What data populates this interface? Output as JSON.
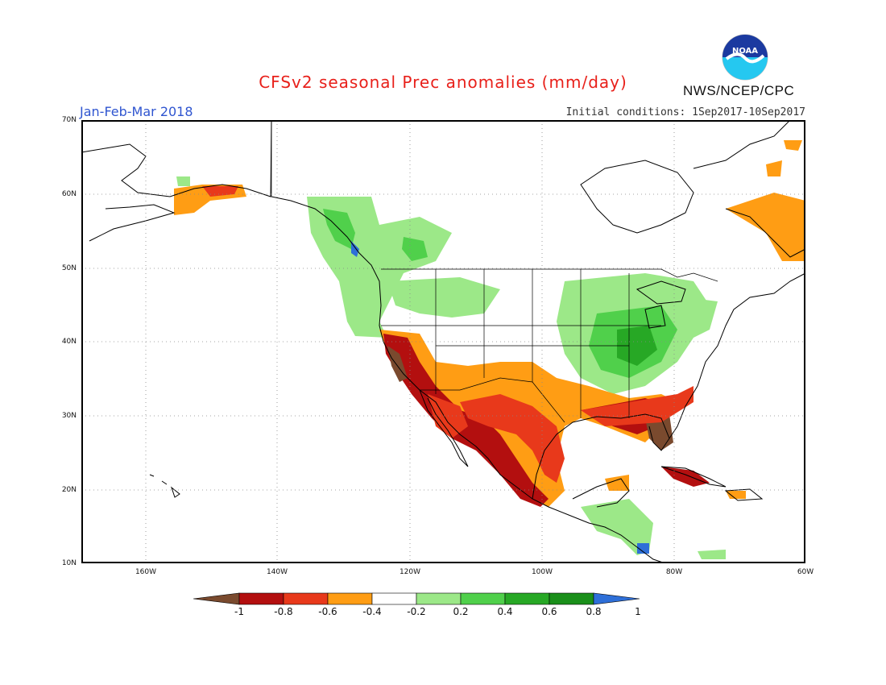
{
  "header": {
    "title": "CFSv2 seasonal Prec anomalies (mm/day)",
    "period": "Jan-Feb-Mar 2018",
    "initial_conditions": "Initial conditions: 1Sep2017-10Sep2017",
    "agency": "NWS/NCEP/CPC",
    "logo_text": "NOAA"
  },
  "map": {
    "lat_labels": [
      "70N",
      "60N",
      "50N",
      "40N",
      "30N",
      "20N",
      "10N"
    ],
    "lon_labels": [
      "160W",
      "140W",
      "120W",
      "100W",
      "80W",
      "60W"
    ]
  },
  "colorbar": {
    "labels": [
      "-1",
      "-0.8",
      "-0.6",
      "-0.4",
      "-0.2",
      "0.2",
      "0.4",
      "0.6",
      "0.8",
      "1"
    ],
    "colors": [
      "#7a4a2e",
      "#b30f0f",
      "#e8391b",
      "#ff9d14",
      "#ffffff",
      "#9ce888",
      "#50d04b",
      "#27a825",
      "#1a8f1a",
      "#2e6fd8"
    ]
  }
}
